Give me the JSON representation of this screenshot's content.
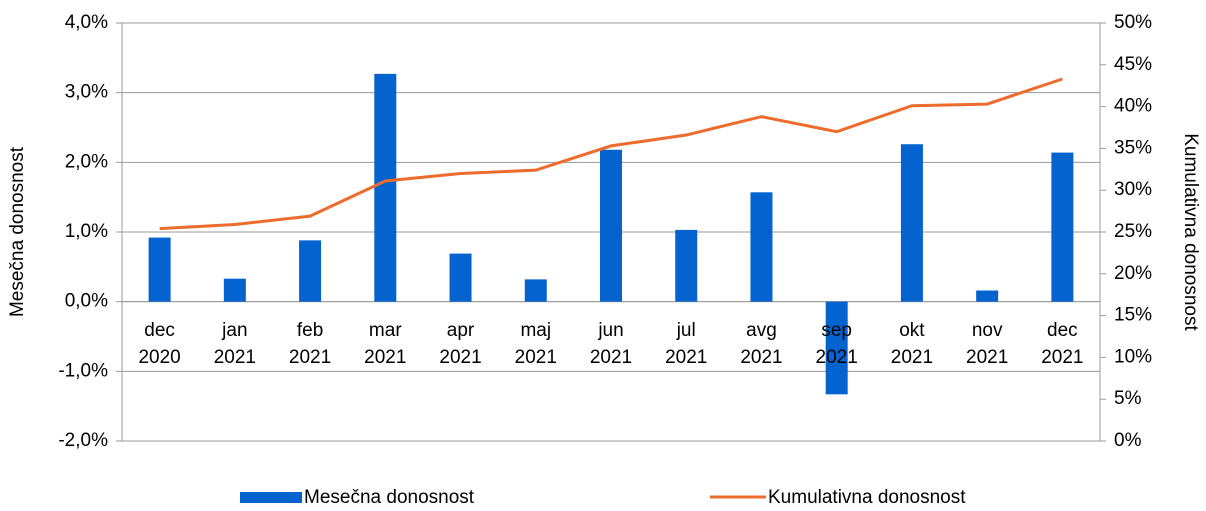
{
  "chart_data": {
    "type": "bar_line",
    "categories": [
      "dec 2020",
      "jan 2021",
      "feb 2021",
      "mar 2021",
      "apr 2021",
      "maj 2021",
      "jun 2021",
      "jul 2021",
      "avg 2021",
      "sep 2021",
      "okt 2021",
      "nov 2021",
      "dec 2021"
    ],
    "series": [
      {
        "name": "Mesečna donosnost",
        "type": "bar",
        "color": "#0563d0",
        "values": [
          0.92,
          0.33,
          0.88,
          3.27,
          0.69,
          0.32,
          2.18,
          1.03,
          1.57,
          -1.33,
          2.26,
          0.16,
          2.14
        ]
      },
      {
        "name": "Kumulativna donosnost",
        "type": "line",
        "axis": "y2",
        "color": "#ed6b2d",
        "values": [
          25.4,
          25.9,
          26.9,
          31.1,
          32.0,
          32.4,
          35.3,
          36.6,
          38.8,
          37.0,
          40.1,
          40.3,
          43.3
        ]
      }
    ],
    "ylabel": "Mesečna donosnost",
    "y2label": "Kumulativna donosnost",
    "ylim": [
      -2,
      4
    ],
    "yticks": [
      {
        "value": -2,
        "label": "-2,0%"
      },
      {
        "value": -1,
        "label": "-1,0%"
      },
      {
        "value": 0,
        "label": "0,0%"
      },
      {
        "value": 1,
        "label": "1,0%"
      },
      {
        "value": 2,
        "label": "2,0%"
      },
      {
        "value": 3,
        "label": "3,0%"
      },
      {
        "value": 4,
        "label": "4,0%"
      }
    ],
    "y2lim": [
      0,
      50
    ],
    "y2ticks": [
      {
        "value": 0,
        "label": "0%"
      },
      {
        "value": 5,
        "label": "5%"
      },
      {
        "value": 10,
        "label": "10%"
      },
      {
        "value": 15,
        "label": "15%"
      },
      {
        "value": 20,
        "label": "20%"
      },
      {
        "value": 25,
        "label": "25%"
      },
      {
        "value": 30,
        "label": "30%"
      },
      {
        "value": 35,
        "label": "35%"
      },
      {
        "value": 40,
        "label": "40%"
      },
      {
        "value": 45,
        "label": "45%"
      },
      {
        "value": 50,
        "label": "50%"
      }
    ],
    "grid": true,
    "legend": "bottom"
  }
}
